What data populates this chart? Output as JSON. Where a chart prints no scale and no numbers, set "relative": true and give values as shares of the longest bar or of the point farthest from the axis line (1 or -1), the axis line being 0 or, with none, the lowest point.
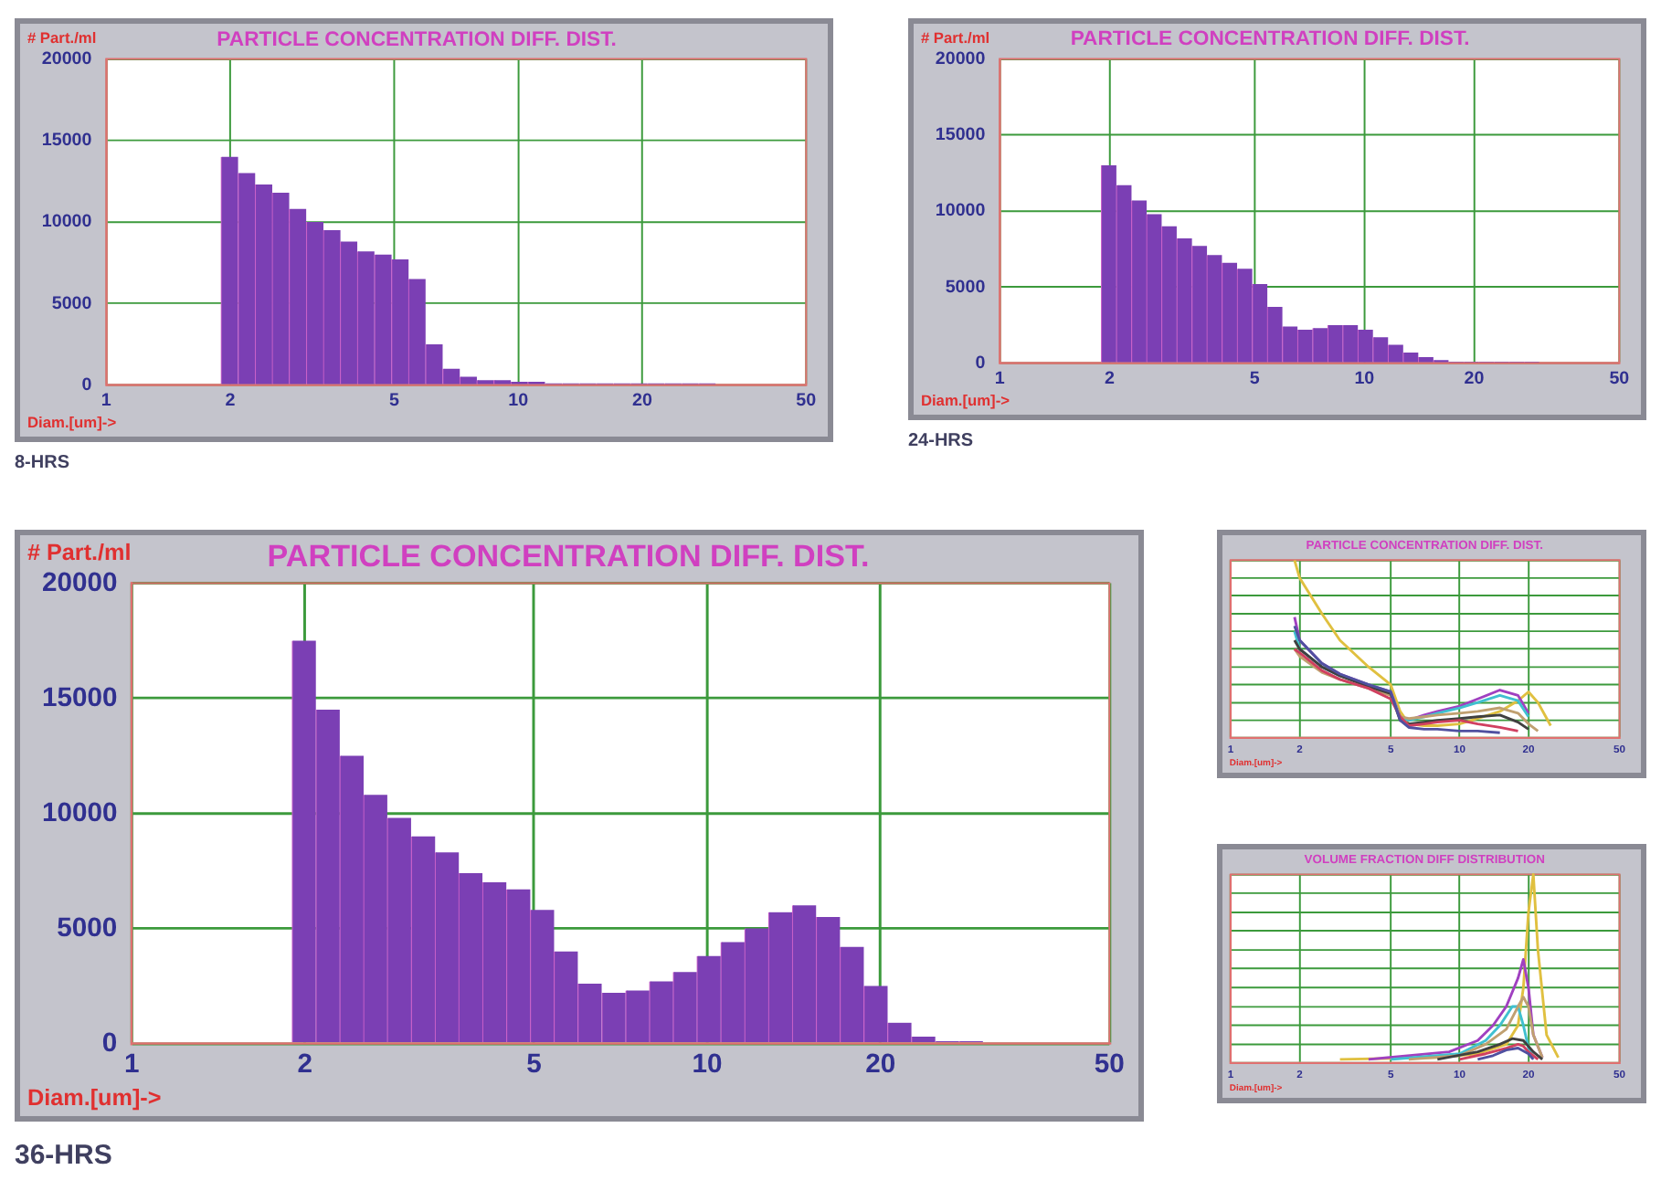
{
  "chart_data": [
    {
      "type": "histogram",
      "title": "PARTICLE CONCENTRATION DIFF. DIST.",
      "ylabel": "# Part./ml",
      "xlabel": "Diam.[um]->",
      "annotations": [
        "8-HRS"
      ],
      "color": "#7b3fb4",
      "log": "x",
      "grid": true,
      "xlim": [
        1,
        50
      ],
      "xticks": [
        1,
        2,
        5,
        10,
        20,
        50
      ],
      "ylim": [
        0,
        20000
      ],
      "yticks": [
        0,
        5000,
        10000,
        15000,
        20000
      ],
      "bins": [
        1.9,
        2.09,
        2.3,
        2.53,
        2.78,
        3.06,
        3.37,
        3.7,
        4.07,
        4.48,
        4.93,
        5.42,
        5.96,
        6.56,
        7.22,
        7.94,
        8.73,
        9.6,
        10.56,
        11.62,
        12.78,
        14.06,
        15.47,
        17.02,
        18.72,
        20.59,
        22.65,
        24.92,
        27.41,
        30.15
      ],
      "values": [
        14000,
        13000,
        12300,
        11800,
        10800,
        10000,
        9500,
        8800,
        8200,
        8000,
        7700,
        6500,
        2500,
        1000,
        500,
        300,
        300,
        200,
        200,
        100,
        100,
        100,
        100,
        100,
        100,
        100,
        100,
        100,
        100
      ]
    },
    {
      "type": "histogram",
      "title": "PARTICLE CONCENTRATION DIFF. DIST.",
      "ylabel": "# Part./ml",
      "xlabel": "Diam.[um]->",
      "annotations": [
        "24-HRS"
      ],
      "color": "#7b3fb4",
      "log": "x",
      "grid": true,
      "xlim": [
        1,
        50
      ],
      "xticks": [
        1,
        2,
        5,
        10,
        20,
        50
      ],
      "ylim": [
        0,
        20000
      ],
      "yticks": [
        0,
        5000,
        10000,
        15000,
        20000
      ],
      "bins": [
        1.9,
        2.09,
        2.3,
        2.53,
        2.78,
        3.06,
        3.37,
        3.7,
        4.07,
        4.48,
        4.93,
        5.42,
        5.96,
        6.56,
        7.22,
        7.94,
        8.73,
        9.6,
        10.56,
        11.62,
        12.78,
        14.06,
        15.47,
        17.02,
        18.72,
        20.59,
        22.65,
        24.92,
        27.41,
        30.15
      ],
      "values": [
        13000,
        11700,
        10700,
        9800,
        9000,
        8200,
        7700,
        7100,
        6600,
        6200,
        5200,
        3700,
        2400,
        2200,
        2300,
        2500,
        2500,
        2200,
        1700,
        1200,
        700,
        400,
        200,
        100,
        100,
        100,
        100,
        100,
        100
      ]
    },
    {
      "type": "histogram",
      "title": "PARTICLE CONCENTRATION DIFF. DIST.",
      "ylabel": "# Part./ml",
      "xlabel": "Diam.[um]->",
      "annotations": [
        "36-HRS"
      ],
      "color": "#7b3fb4",
      "log": "x",
      "grid": true,
      "xlim": [
        1,
        50
      ],
      "xticks": [
        1,
        2,
        5,
        10,
        20,
        50
      ],
      "ylim": [
        0,
        20000
      ],
      "yticks": [
        0,
        5000,
        10000,
        15000,
        20000
      ],
      "bins": [
        1.9,
        2.09,
        2.3,
        2.53,
        2.78,
        3.06,
        3.37,
        3.7,
        4.07,
        4.48,
        4.93,
        5.42,
        5.96,
        6.56,
        7.22,
        7.94,
        8.73,
        9.6,
        10.56,
        11.62,
        12.78,
        14.06,
        15.47,
        17.02,
        18.72,
        20.59,
        22.65,
        24.92,
        27.41,
        30.15
      ],
      "values": [
        17500,
        14500,
        12500,
        10800,
        9800,
        9000,
        8300,
        7400,
        7000,
        6700,
        5800,
        4000,
        2600,
        2200,
        2300,
        2700,
        3100,
        3800,
        4400,
        5000,
        5700,
        6000,
        5500,
        4200,
        2500,
        900,
        300,
        100,
        100
      ]
    },
    {
      "type": "line",
      "title": "PARTICLE CONCENTRATION DIFF. DIST.",
      "xlabel": "Diam.[um]->",
      "relative": true,
      "log": "x",
      "grid": true,
      "xlim": [
        1,
        50
      ],
      "xticks": [
        1,
        2,
        5,
        10,
        20,
        50
      ],
      "series": [
        {
          "color": "#5050a0",
          "x": [
            1.9,
            2,
            2.5,
            3,
            4,
            5,
            5.5,
            6,
            7,
            8,
            10,
            12,
            15
          ],
          "values": [
            0.63,
            0.55,
            0.42,
            0.36,
            0.3,
            0.26,
            0.1,
            0.06,
            0.05,
            0.05,
            0.04,
            0.04,
            0.03
          ]
        },
        {
          "color": "#d04060",
          "x": [
            1.9,
            2,
            2.5,
            3,
            4,
            5,
            5.5,
            6,
            7,
            8,
            10,
            12,
            15,
            18
          ],
          "values": [
            0.5,
            0.48,
            0.38,
            0.33,
            0.28,
            0.22,
            0.12,
            0.07,
            0.08,
            0.09,
            0.1,
            0.08,
            0.06,
            0.04
          ]
        },
        {
          "color": "#404040",
          "x": [
            1.9,
            2,
            2.5,
            3,
            4,
            5,
            5.5,
            6,
            7,
            8,
            10,
            12,
            15,
            18,
            20
          ],
          "values": [
            0.55,
            0.5,
            0.4,
            0.35,
            0.29,
            0.25,
            0.1,
            0.08,
            0.09,
            0.1,
            0.11,
            0.12,
            0.13,
            0.09,
            0.05
          ]
        },
        {
          "color": "#c0a070",
          "x": [
            1.9,
            2,
            2.5,
            3,
            4,
            5,
            5.5,
            6,
            7,
            8,
            10,
            12,
            15,
            18,
            20,
            22
          ],
          "values": [
            0.5,
            0.46,
            0.37,
            0.33,
            0.28,
            0.24,
            0.12,
            0.11,
            0.12,
            0.13,
            0.14,
            0.15,
            0.17,
            0.14,
            0.08,
            0.04
          ]
        },
        {
          "color": "#40c0d0",
          "x": [
            1.9,
            2,
            2.5,
            3,
            4,
            5,
            5.5,
            6,
            7,
            8,
            10,
            12,
            15,
            18,
            20
          ],
          "values": [
            0.6,
            0.5,
            0.4,
            0.35,
            0.3,
            0.25,
            0.12,
            0.1,
            0.12,
            0.14,
            0.17,
            0.2,
            0.24,
            0.21,
            0.12
          ]
        },
        {
          "color": "#a040c0",
          "x": [
            1.9,
            2,
            2.5,
            3,
            4,
            5,
            5.5,
            6,
            7,
            8,
            10,
            12,
            15,
            18,
            20
          ],
          "values": [
            0.68,
            0.55,
            0.42,
            0.36,
            0.3,
            0.26,
            0.12,
            0.1,
            0.13,
            0.15,
            0.18,
            0.22,
            0.27,
            0.24,
            0.14
          ]
        },
        {
          "color": "#e0c040",
          "x": [
            1.9,
            2,
            2.5,
            3,
            4,
            5,
            5.5,
            6,
            7,
            8,
            10,
            12,
            15,
            18,
            20,
            22,
            25
          ],
          "values": [
            1,
            0.9,
            0.7,
            0.55,
            0.4,
            0.3,
            0.15,
            0.08,
            0.07,
            0.07,
            0.08,
            0.11,
            0.15,
            0.21,
            0.26,
            0.2,
            0.07
          ]
        }
      ]
    },
    {
      "type": "line",
      "title": "VOLUME FRACTION DIFF DISTRIBUTION",
      "xlabel": "Diam.[um]->",
      "relative": true,
      "log": "x",
      "grid": true,
      "xlim": [
        1,
        50
      ],
      "xticks": [
        1,
        2,
        5,
        10,
        20,
        50
      ],
      "series": [
        {
          "color": "#5050a0",
          "x": [
            12,
            14,
            16,
            18,
            20,
            21
          ],
          "values": [
            0.02,
            0.04,
            0.07,
            0.08,
            0.05,
            0.02
          ]
        },
        {
          "color": "#d04060",
          "x": [
            10,
            13,
            16,
            18,
            19,
            20,
            22
          ],
          "values": [
            0.02,
            0.05,
            0.08,
            0.1,
            0.09,
            0.06,
            0.02
          ]
        },
        {
          "color": "#404040",
          "x": [
            8,
            12,
            15,
            17,
            19,
            21,
            23
          ],
          "values": [
            0.02,
            0.06,
            0.1,
            0.13,
            0.12,
            0.06,
            0.02
          ]
        },
        {
          "color": "#c0a070",
          "x": [
            6,
            10,
            13,
            16,
            18,
            19,
            20,
            21,
            23
          ],
          "values": [
            0.02,
            0.04,
            0.1,
            0.18,
            0.3,
            0.35,
            0.3,
            0.15,
            0.03
          ]
        },
        {
          "color": "#40c0d0",
          "x": [
            5,
            10,
            13,
            15,
            17,
            18,
            19,
            20,
            21
          ],
          "values": [
            0.02,
            0.05,
            0.12,
            0.2,
            0.3,
            0.3,
            0.2,
            0.08,
            0.03
          ]
        },
        {
          "color": "#a040c0",
          "x": [
            4,
            9,
            12,
            14,
            16,
            18,
            19,
            20,
            21,
            23
          ],
          "values": [
            0.02,
            0.06,
            0.12,
            0.2,
            0.3,
            0.45,
            0.55,
            0.4,
            0.15,
            0.03
          ]
        },
        {
          "color": "#e0c040",
          "x": [
            3,
            8,
            12,
            16,
            18,
            19,
            20,
            21,
            22,
            24,
            27
          ],
          "values": [
            0.02,
            0.03,
            0.05,
            0.1,
            0.2,
            0.4,
            0.8,
            1,
            0.6,
            0.15,
            0.03
          ]
        }
      ]
    }
  ]
}
